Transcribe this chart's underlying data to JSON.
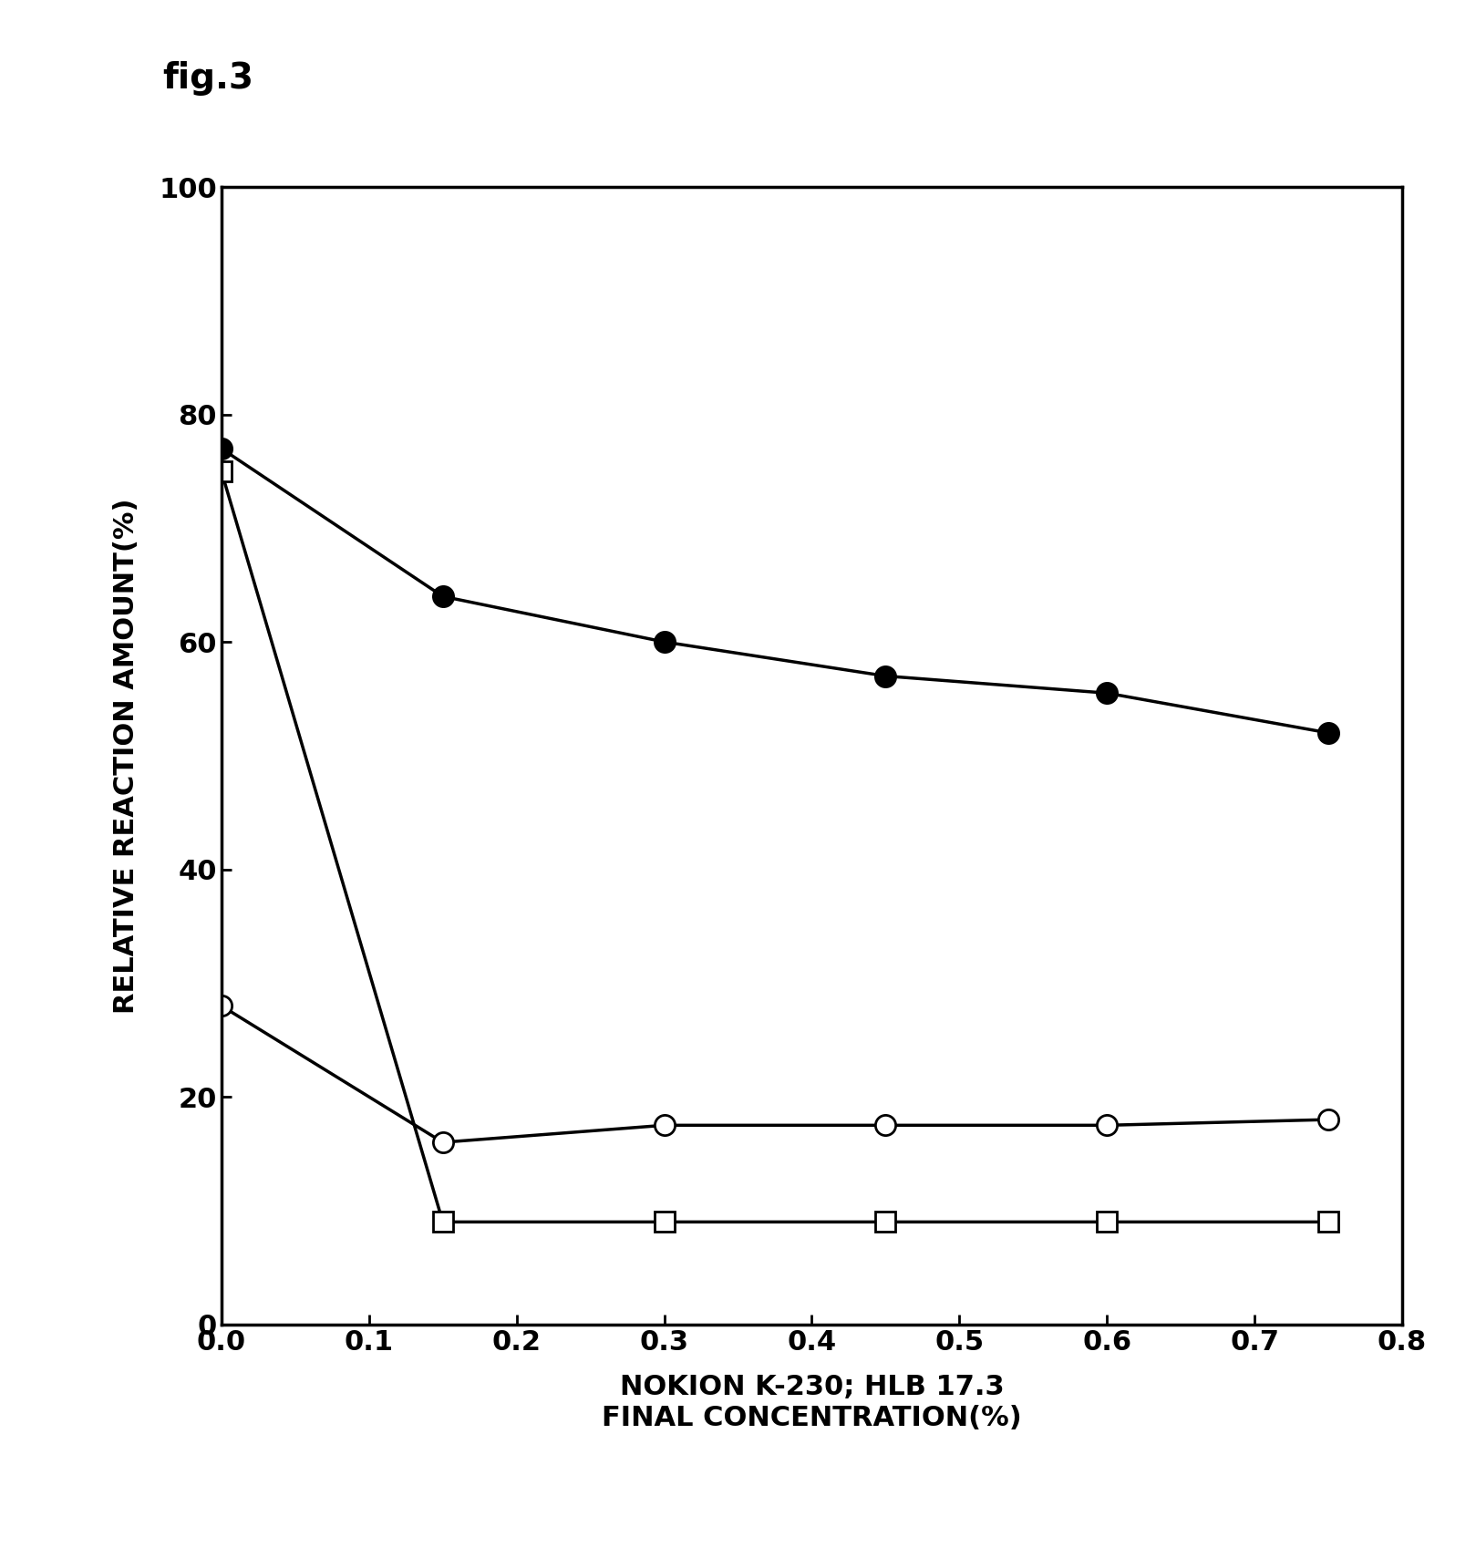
{
  "title": "fig.3",
  "xlabel_line1": "NOKION K-230; HLB 17.3",
  "xlabel_line2": "FINAL CONCENTRATION(%)",
  "ylabel": "RELATIVE REACTION AMOUNT(%)",
  "xlim": [
    0,
    0.8
  ],
  "ylim": [
    0,
    100
  ],
  "xticks": [
    0.0,
    0.1,
    0.2,
    0.3,
    0.4,
    0.5,
    0.6,
    0.7,
    0.8
  ],
  "yticks": [
    0,
    20,
    40,
    60,
    80,
    100
  ],
  "series": [
    {
      "name": "filled_circle",
      "x": [
        0.0,
        0.15,
        0.3,
        0.45,
        0.6,
        0.75
      ],
      "y": [
        77,
        64,
        60,
        57,
        55.5,
        52
      ],
      "marker": "o",
      "filled": true,
      "color": "#000000",
      "markersize": 16,
      "linewidth": 2.5
    },
    {
      "name": "open_circle",
      "x": [
        0.0,
        0.15,
        0.3,
        0.45,
        0.6,
        0.75
      ],
      "y": [
        28,
        16,
        17.5,
        17.5,
        17.5,
        18
      ],
      "marker": "o",
      "filled": false,
      "color": "#000000",
      "markersize": 16,
      "linewidth": 2.5
    },
    {
      "name": "open_square",
      "x": [
        0.0,
        0.15,
        0.3,
        0.45,
        0.6,
        0.75
      ],
      "y": [
        75,
        9,
        9,
        9,
        9,
        9
      ],
      "marker": "s",
      "filled": false,
      "color": "#000000",
      "markersize": 16,
      "linewidth": 2.5
    }
  ],
  "background_color": "#ffffff",
  "fig_label_fontsize": 28,
  "axis_label_fontsize": 22,
  "tick_fontsize": 22,
  "fontweight": "bold"
}
